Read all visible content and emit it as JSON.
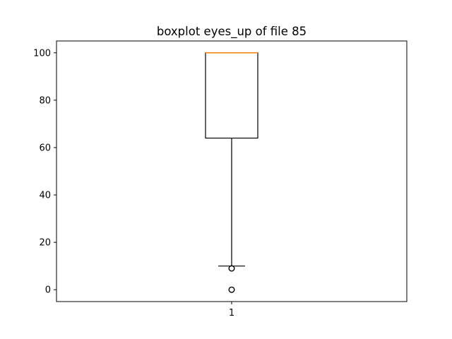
{
  "chart_data": {
    "type": "boxplot",
    "title": "boxplot eyes_up of file 85",
    "xlabel": "",
    "ylabel": "",
    "categories": [
      "1"
    ],
    "boxes": [
      {
        "category": "1",
        "whisker_low": 10,
        "q1": 64,
        "median": 100,
        "q3": 100,
        "whisker_high": 100,
        "outliers": [
          9,
          0
        ]
      }
    ],
    "ylim": [
      -5,
      105
    ],
    "yticks": [
      0,
      20,
      40,
      60,
      80,
      100
    ],
    "grid": false,
    "colors": {
      "box": "#000000",
      "median": "#ff7f0e",
      "whisker": "#000000",
      "outlier": "#000000"
    }
  }
}
